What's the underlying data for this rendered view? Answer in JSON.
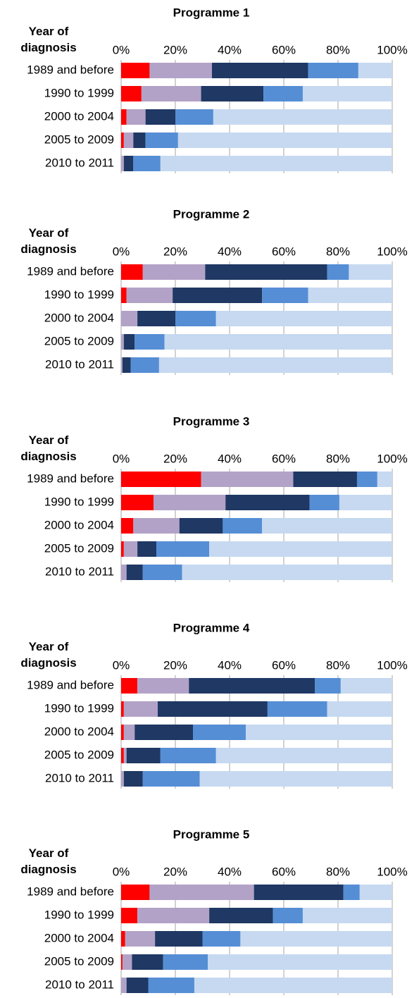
{
  "chart_data": [
    {
      "type": "bar",
      "orientation": "horizontal",
      "stacked": true,
      "title": "Programme 1",
      "y_label": "Year of diagnosis",
      "categories": [
        "1989 and before",
        "1990 to 1999",
        "2000 to 2004",
        "2005 to 2009",
        "2010 to 2011"
      ],
      "xlim": [
        0,
        100
      ],
      "xticks": [
        {
          "value": 0,
          "label": "0%"
        },
        {
          "value": 20,
          "label": "20%"
        },
        {
          "value": 40,
          "label": "40%"
        },
        {
          "value": 60,
          "label": "60%"
        },
        {
          "value": 80,
          "label": "80%"
        },
        {
          "value": 100,
          "label": "100%"
        }
      ],
      "grid": true,
      "series": [
        {
          "color": "#ff0000",
          "values": [
            10.5,
            7.5,
            2,
            1,
            0
          ]
        },
        {
          "color": "#b3a2c7",
          "values": [
            23,
            22,
            7,
            3.5,
            1
          ]
        },
        {
          "color": "#1f3864",
          "values": [
            35.5,
            23,
            11,
            4.5,
            3.5
          ]
        },
        {
          "color": "#558ed5",
          "values": [
            18.5,
            14.5,
            14,
            12,
            10
          ]
        },
        {
          "color": "#c6d9f1",
          "values": [
            12.5,
            33,
            66,
            79,
            85.5
          ]
        }
      ]
    },
    {
      "type": "bar",
      "orientation": "horizontal",
      "stacked": true,
      "title": "Programme 2",
      "y_label": "Year of diagnosis",
      "categories": [
        "1989 and before",
        "1990 to 1999",
        "2000 to 2004",
        "2005 to 2009",
        "2010 to 2011"
      ],
      "xlim": [
        0,
        100
      ],
      "xticks": [
        {
          "value": 0,
          "label": "0%"
        },
        {
          "value": 20,
          "label": "20%"
        },
        {
          "value": 40,
          "label": "40%"
        },
        {
          "value": 60,
          "label": "60%"
        },
        {
          "value": 80,
          "label": "80%"
        },
        {
          "value": 100,
          "label": "100%"
        }
      ],
      "grid": true,
      "series": [
        {
          "color": "#ff0000",
          "values": [
            8,
            2,
            0,
            0,
            0
          ]
        },
        {
          "color": "#b3a2c7",
          "values": [
            23,
            17,
            6,
            1,
            0.5
          ]
        },
        {
          "color": "#1f3864",
          "values": [
            45,
            33,
            14,
            4,
            3
          ]
        },
        {
          "color": "#558ed5",
          "values": [
            8,
            17,
            15,
            11,
            10.5
          ]
        },
        {
          "color": "#c6d9f1",
          "values": [
            16,
            31,
            65,
            84,
            86
          ]
        }
      ]
    },
    {
      "type": "bar",
      "orientation": "horizontal",
      "stacked": true,
      "title": "Programme 3",
      "y_label": "Year of diagnosis",
      "categories": [
        "1989 and before",
        "1990 to 1999",
        "2000 to 2004",
        "2005 to 2009",
        "2010 to 2011"
      ],
      "xlim": [
        0,
        100
      ],
      "xticks": [
        {
          "value": 0,
          "label": "0%"
        },
        {
          "value": 20,
          "label": "20%"
        },
        {
          "value": 40,
          "label": "40%"
        },
        {
          "value": 60,
          "label": "60%"
        },
        {
          "value": 80,
          "label": "80%"
        },
        {
          "value": 100,
          "label": "100%"
        }
      ],
      "grid": true,
      "series": [
        {
          "color": "#ff0000",
          "values": [
            29.5,
            12,
            4.5,
            1,
            0
          ]
        },
        {
          "color": "#b3a2c7",
          "values": [
            34,
            26.5,
            17,
            5,
            2
          ]
        },
        {
          "color": "#1f3864",
          "values": [
            23.5,
            31,
            16,
            7,
            6
          ]
        },
        {
          "color": "#558ed5",
          "values": [
            7.5,
            11,
            14.5,
            19.5,
            14.5
          ]
        },
        {
          "color": "#c6d9f1",
          "values": [
            5.5,
            19.5,
            48,
            67.5,
            77.5
          ]
        }
      ]
    },
    {
      "type": "bar",
      "orientation": "horizontal",
      "stacked": true,
      "title": "Programme 4",
      "y_label": "Year of diagnosis",
      "categories": [
        "1989 and before",
        "1990 to 1999",
        "2000 to 2004",
        "2005 to 2009",
        "2010 to 2011"
      ],
      "xlim": [
        0,
        100
      ],
      "xticks": [
        {
          "value": 0,
          "label": "0%"
        },
        {
          "value": 20,
          "label": "20%"
        },
        {
          "value": 40,
          "label": "40%"
        },
        {
          "value": 60,
          "label": "60%"
        },
        {
          "value": 80,
          "label": "80%"
        },
        {
          "value": 100,
          "label": "100%"
        }
      ],
      "grid": true,
      "series": [
        {
          "color": "#ff0000",
          "values": [
            6,
            1,
            1,
            1,
            0
          ]
        },
        {
          "color": "#b3a2c7",
          "values": [
            19,
            12.5,
            4,
            1,
            1
          ]
        },
        {
          "color": "#1f3864",
          "values": [
            46.5,
            40.5,
            21.5,
            12.5,
            7
          ]
        },
        {
          "color": "#558ed5",
          "values": [
            9.5,
            22,
            19.5,
            20.5,
            21
          ]
        },
        {
          "color": "#c6d9f1",
          "values": [
            19,
            24,
            54,
            65,
            71
          ]
        }
      ]
    },
    {
      "type": "bar",
      "orientation": "horizontal",
      "stacked": true,
      "title": "Programme 5",
      "y_label": "Year of diagnosis",
      "categories": [
        "1989 and before",
        "1990 to 1999",
        "2000 to 2004",
        "2005 to 2009",
        "2010 to 2011"
      ],
      "xlim": [
        0,
        100
      ],
      "xticks": [
        {
          "value": 0,
          "label": "0%"
        },
        {
          "value": 20,
          "label": "20%"
        },
        {
          "value": 40,
          "label": "40%"
        },
        {
          "value": 60,
          "label": "60%"
        },
        {
          "value": 80,
          "label": "80%"
        },
        {
          "value": 100,
          "label": "100%"
        }
      ],
      "grid": true,
      "series": [
        {
          "color": "#ff0000",
          "values": [
            10.5,
            6,
            1.5,
            0.5,
            0
          ]
        },
        {
          "color": "#b3a2c7",
          "values": [
            38.5,
            26.5,
            11,
            3.5,
            2
          ]
        },
        {
          "color": "#1f3864",
          "values": [
            33,
            23.5,
            17.5,
            11.5,
            8
          ]
        },
        {
          "color": "#558ed5",
          "values": [
            6,
            11,
            14,
            16.5,
            17
          ]
        },
        {
          "color": "#c6d9f1",
          "values": [
            12,
            33,
            56,
            68,
            73
          ]
        }
      ]
    }
  ]
}
